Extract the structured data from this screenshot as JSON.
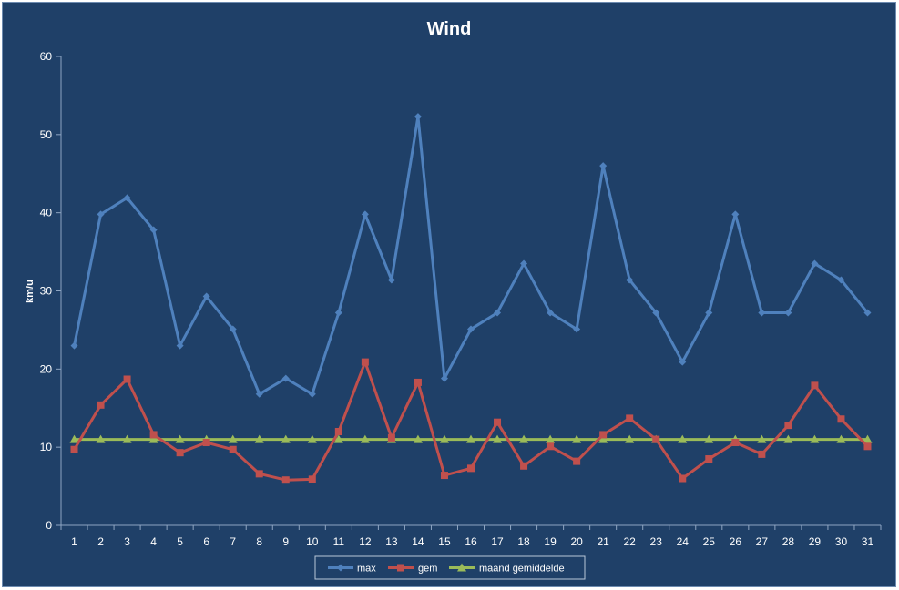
{
  "chart_data": {
    "type": "line",
    "title": "Wind",
    "xlabel": "",
    "ylabel": "km/u",
    "ylim": [
      0,
      60
    ],
    "yticks": [
      "0",
      "10",
      "20",
      "30",
      "40",
      "50",
      "60"
    ],
    "categories": [
      "1",
      "2",
      "3",
      "4",
      "5",
      "6",
      "7",
      "8",
      "9",
      "10",
      "11",
      "12",
      "13",
      "14",
      "15",
      "16",
      "17",
      "18",
      "19",
      "20",
      "21",
      "22",
      "23",
      "24",
      "25",
      "26",
      "27",
      "28",
      "29",
      "30",
      "31"
    ],
    "grid": false,
    "legend_position": "bottom",
    "series": [
      {
        "name": "max",
        "color": "#4f81bd",
        "marker": "diamond",
        "values": [
          23.0,
          39.8,
          41.9,
          37.8,
          23.0,
          29.3,
          25.1,
          16.8,
          18.8,
          16.8,
          27.2,
          39.8,
          31.4,
          52.3,
          18.8,
          25.1,
          27.2,
          33.5,
          27.2,
          25.1,
          46.0,
          31.4,
          27.2,
          20.9,
          27.2,
          39.8,
          27.2,
          27.2,
          33.5,
          31.4,
          27.2
        ]
      },
      {
        "name": "gem",
        "color": "#c0504d",
        "marker": "square",
        "values": [
          9.7,
          15.4,
          18.7,
          11.6,
          9.3,
          10.6,
          9.7,
          6.6,
          5.8,
          5.9,
          12.0,
          20.9,
          11.2,
          18.3,
          6.4,
          7.3,
          13.2,
          7.6,
          10.1,
          8.2,
          11.6,
          13.7,
          11.0,
          6.0,
          8.5,
          10.6,
          9.1,
          12.8,
          17.9,
          13.6,
          10.1
        ]
      },
      {
        "name": "maand gemiddelde",
        "color": "#9bbb59",
        "marker": "triangle",
        "values": [
          11.0,
          11.0,
          11.0,
          11.0,
          11.0,
          11.0,
          11.0,
          11.0,
          11.0,
          11.0,
          11.0,
          11.0,
          11.0,
          11.0,
          11.0,
          11.0,
          11.0,
          11.0,
          11.0,
          11.0,
          11.0,
          11.0,
          11.0,
          11.0,
          11.0,
          11.0,
          11.0,
          11.0,
          11.0,
          11.0,
          11.0
        ]
      }
    ],
    "colors": {
      "background": "#1f4068",
      "axis": "#8ea5c2",
      "text": "#ffffff"
    }
  }
}
